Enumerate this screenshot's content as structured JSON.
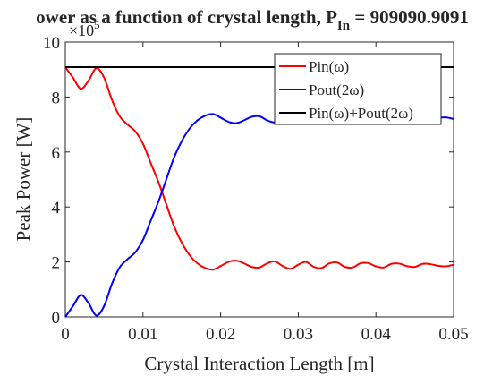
{
  "chart_data": {
    "type": "line",
    "title": "ower as a function of crystal length, P",
    "title_sub": "In",
    "title_tail": " = 909090.9091",
    "xlabel": "Crystal Interaction Length [m]",
    "ylabel": "Peak Power [W]",
    "y_multiplier": "×10",
    "y_multiplier_exp": "5",
    "xlim": [
      0,
      0.05
    ],
    "ylim": [
      0,
      10
    ],
    "xticks": [
      0,
      0.01,
      0.02,
      0.03,
      0.04,
      0.05
    ],
    "xtick_labels": [
      "0",
      "0.01",
      "0.02",
      "0.03",
      "0.04",
      "0.05"
    ],
    "yticks": [
      0,
      2,
      4,
      6,
      8,
      10
    ],
    "ytick_labels": [
      "0",
      "2",
      "4",
      "6",
      "8",
      "10"
    ],
    "grid": false,
    "legend_placement": "top-right",
    "legend": [
      "Pin(ω)",
      "Pout(2ω)",
      "Pin(ω)+Pout(2ω)"
    ],
    "series": [
      {
        "name": "Pin(ω)",
        "color": "#ff0000",
        "x": [
          0,
          0.001,
          0.002,
          0.003,
          0.004,
          0.005,
          0.006,
          0.007,
          0.008,
          0.009,
          0.01,
          0.011,
          0.012,
          0.013,
          0.014,
          0.015,
          0.016,
          0.017,
          0.018,
          0.019,
          0.02,
          0.021,
          0.022,
          0.023,
          0.024,
          0.025,
          0.026,
          0.027,
          0.028,
          0.029,
          0.03,
          0.031,
          0.032,
          0.033,
          0.034,
          0.035,
          0.036,
          0.037,
          0.038,
          0.039,
          0.04,
          0.041,
          0.042,
          0.043,
          0.044,
          0.045,
          0.046,
          0.047,
          0.048,
          0.049,
          0.05
        ],
        "values": [
          9.09,
          8.7,
          8.3,
          8.6,
          9.05,
          8.7,
          7.9,
          7.3,
          7.0,
          6.75,
          6.3,
          5.6,
          4.9,
          4.1,
          3.3,
          2.7,
          2.25,
          1.95,
          1.78,
          1.72,
          1.85,
          2.0,
          2.05,
          1.95,
          1.82,
          1.8,
          1.95,
          2.02,
          1.85,
          1.75,
          1.9,
          2.0,
          1.82,
          1.78,
          1.95,
          1.98,
          1.82,
          1.8,
          1.95,
          1.96,
          1.84,
          1.8,
          1.93,
          1.94,
          1.85,
          1.82,
          1.93,
          1.92,
          1.86,
          1.84,
          1.9
        ]
      },
      {
        "name": "Pout(2ω)",
        "color": "#0000ff",
        "x": [
          0,
          0.001,
          0.002,
          0.003,
          0.004,
          0.005,
          0.006,
          0.007,
          0.008,
          0.009,
          0.01,
          0.011,
          0.012,
          0.013,
          0.014,
          0.015,
          0.016,
          0.017,
          0.018,
          0.019,
          0.02,
          0.021,
          0.022,
          0.023,
          0.024,
          0.025,
          0.026,
          0.027,
          0.028,
          0.029,
          0.03,
          0.031,
          0.032,
          0.033,
          0.034,
          0.035,
          0.036,
          0.037,
          0.038,
          0.039,
          0.04,
          0.041,
          0.042,
          0.043,
          0.044,
          0.045,
          0.046,
          0.047,
          0.048,
          0.049,
          0.05
        ],
        "values": [
          0,
          0.4,
          0.8,
          0.5,
          0.05,
          0.4,
          1.2,
          1.8,
          2.1,
          2.35,
          2.8,
          3.5,
          4.2,
          5.0,
          5.8,
          6.4,
          6.85,
          7.15,
          7.32,
          7.38,
          7.25,
          7.1,
          7.05,
          7.15,
          7.28,
          7.3,
          7.15,
          7.08,
          7.25,
          7.35,
          7.2,
          7.1,
          7.28,
          7.32,
          7.15,
          7.12,
          7.28,
          7.3,
          7.15,
          7.14,
          7.26,
          7.3,
          7.17,
          7.16,
          7.25,
          7.28,
          7.17,
          7.18,
          7.24,
          7.26,
          7.2
        ]
      },
      {
        "name": "Pin(ω)+Pout(2ω)",
        "color": "#000000",
        "x": [
          0,
          0.05
        ],
        "values": [
          9.09,
          9.09
        ]
      }
    ]
  }
}
